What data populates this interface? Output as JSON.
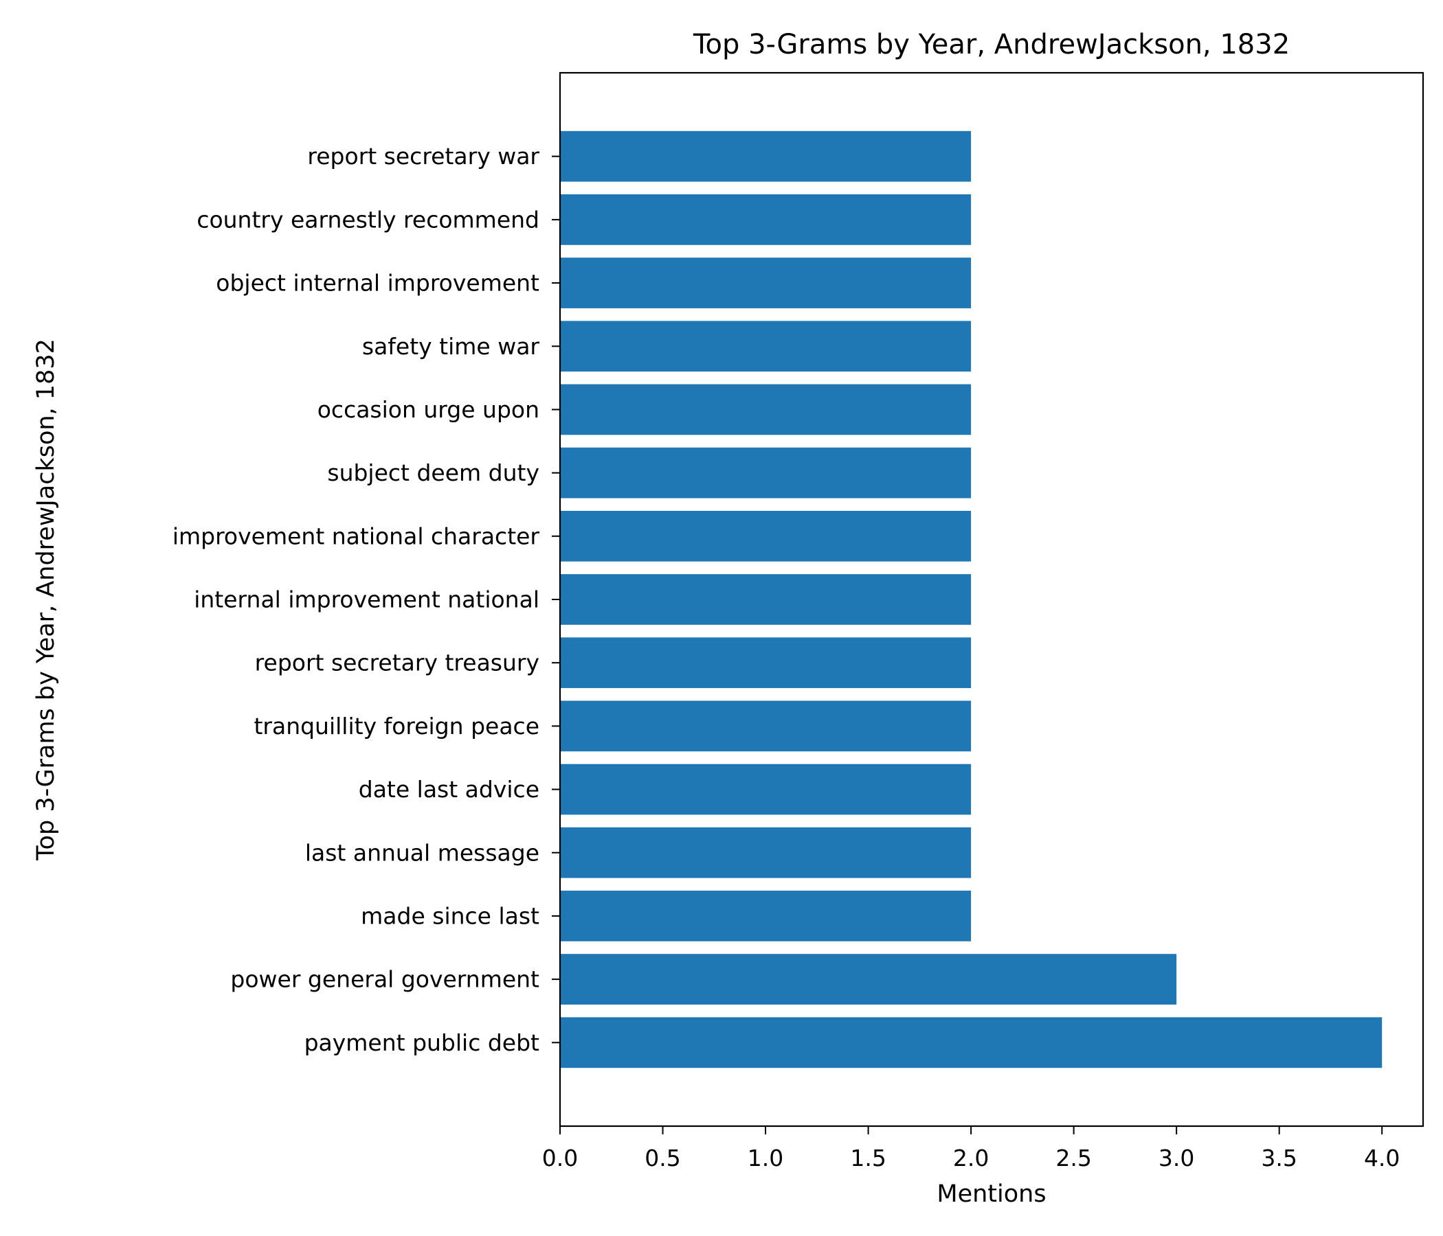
{
  "chart_data": {
    "type": "bar",
    "orientation": "horizontal",
    "title": "Top 3-Grams by Year, AndrewJackson, 1832",
    "xlabel": "Mentions",
    "ylabel": "Top 3-Grams by Year, AndrewJackson, 1832",
    "categories": [
      "payment public debt",
      "power general government",
      "made since last",
      "last annual message",
      "date last advice",
      "tranquillity foreign peace",
      "report secretary treasury",
      "internal improvement national",
      "improvement national character",
      "subject deem duty",
      "occasion urge upon",
      "safety time war",
      "object internal improvement",
      "country earnestly recommend",
      "report secretary war"
    ],
    "values": [
      4,
      3,
      2,
      2,
      2,
      2,
      2,
      2,
      2,
      2,
      2,
      2,
      2,
      2,
      2
    ],
    "xlim": [
      0,
      4.2
    ],
    "xticks": [
      "0.0",
      "0.5",
      "1.0",
      "1.5",
      "2.0",
      "2.5",
      "3.0",
      "3.5",
      "4.0"
    ],
    "bar_color": "#1f77b4",
    "grid": false,
    "legend": "none"
  }
}
